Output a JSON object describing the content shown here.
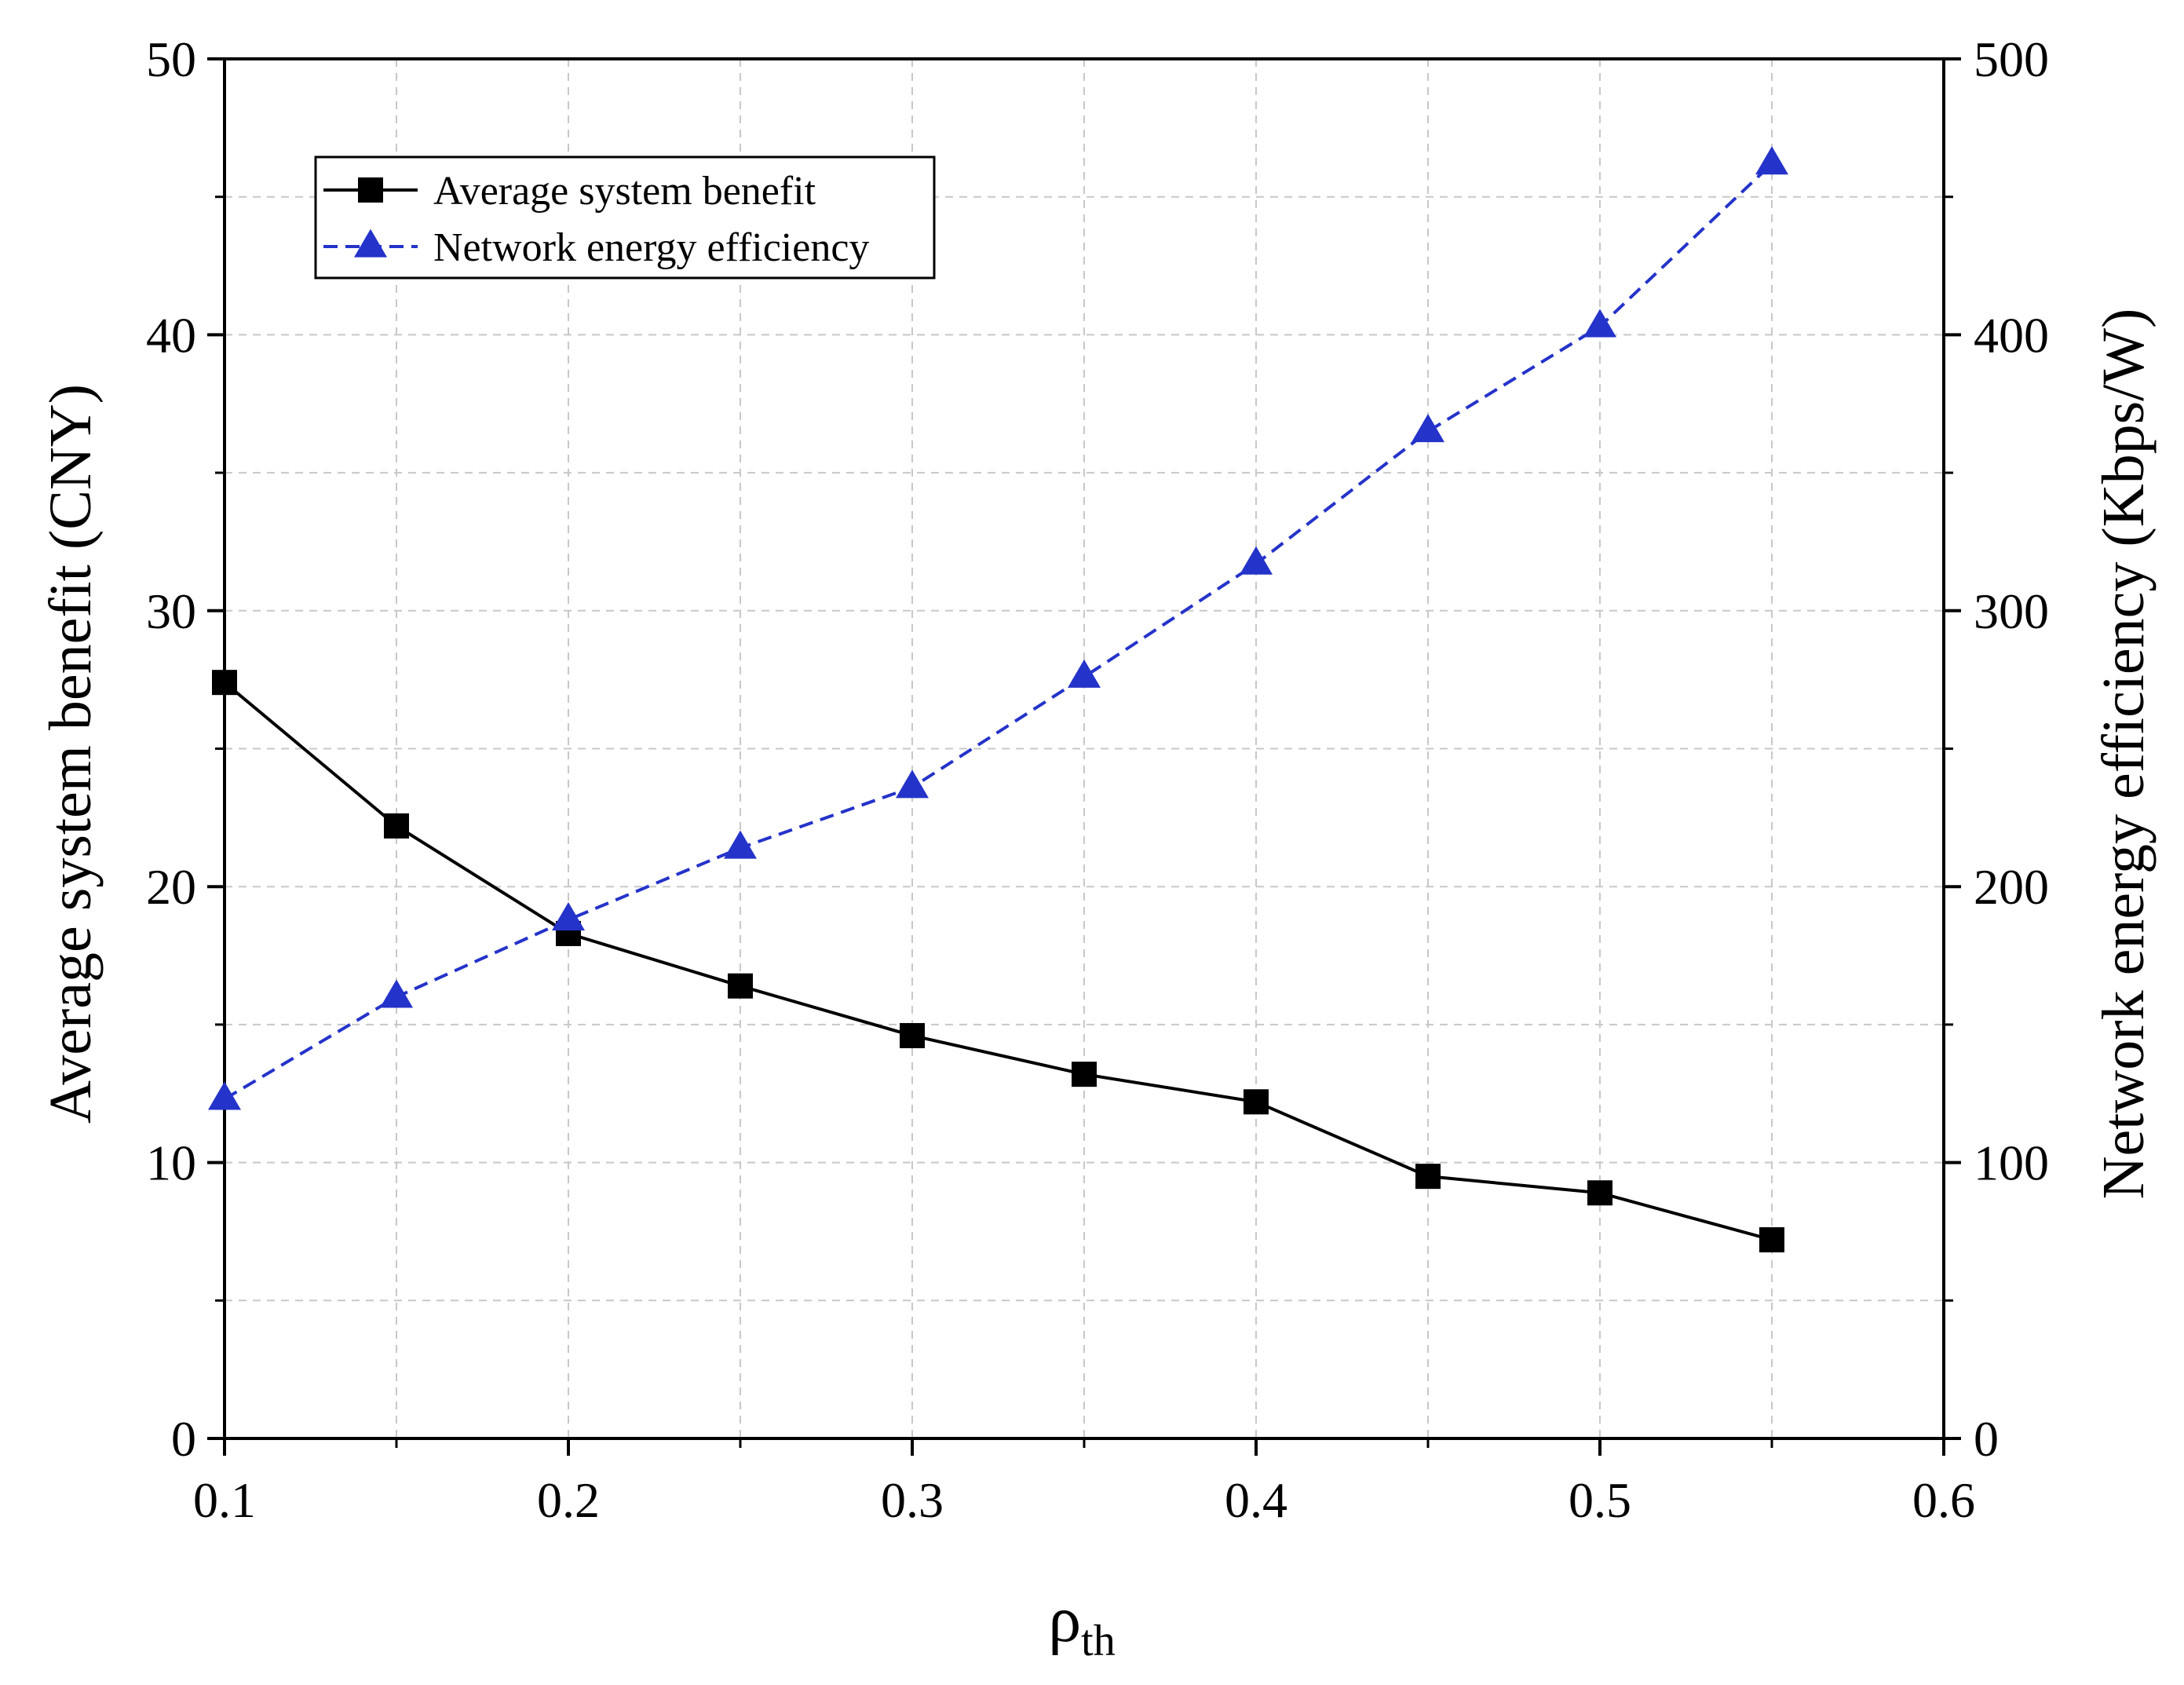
{
  "chart_data": {
    "type": "line",
    "title": "",
    "xlabel": "ρ",
    "xlabel_subscript": "th",
    "ylabel_left": "Average system benefit (CNY)",
    "ylabel_right": "Network energy efficiency (Kbps/W)",
    "xlim": [
      0.1,
      0.6
    ],
    "ylim_left": [
      0,
      50
    ],
    "ylim_right": [
      0,
      500
    ],
    "x_ticks": [
      "0.1",
      "0.2",
      "0.3",
      "0.4",
      "0.5",
      "0.6"
    ],
    "x_tick_values": [
      0.1,
      0.2,
      0.3,
      0.4,
      0.5,
      0.6
    ],
    "y_left_ticks": [
      "0",
      "10",
      "20",
      "30",
      "40",
      "50"
    ],
    "y_left_tick_values": [
      0,
      10,
      20,
      30,
      40,
      50
    ],
    "y_right_ticks": [
      "0",
      "100",
      "200",
      "300",
      "400",
      "500"
    ],
    "y_right_tick_values": [
      0,
      100,
      200,
      300,
      400,
      500
    ],
    "grid": true,
    "legend_position": "top-left",
    "series": [
      {
        "name": "Average system benefit",
        "axis": "left",
        "color": "#000000",
        "marker": "square",
        "line_style": "solid",
        "x": [
          0.1,
          0.15,
          0.2,
          0.25,
          0.3,
          0.35,
          0.4,
          0.45,
          0.5,
          0.55
        ],
        "values": [
          27.4,
          22.2,
          18.3,
          16.4,
          14.6,
          13.2,
          12.2,
          9.5,
          8.9,
          7.2
        ]
      },
      {
        "name": "Network energy efficiency",
        "axis": "right",
        "color": "#2433c9",
        "marker": "triangle",
        "line_style": "dashed",
        "x": [
          0.1,
          0.15,
          0.2,
          0.25,
          0.3,
          0.35,
          0.4,
          0.45,
          0.5,
          0.55
        ],
        "values": [
          123,
          160,
          188,
          214,
          236,
          276,
          317,
          365,
          403,
          462
        ]
      }
    ]
  }
}
